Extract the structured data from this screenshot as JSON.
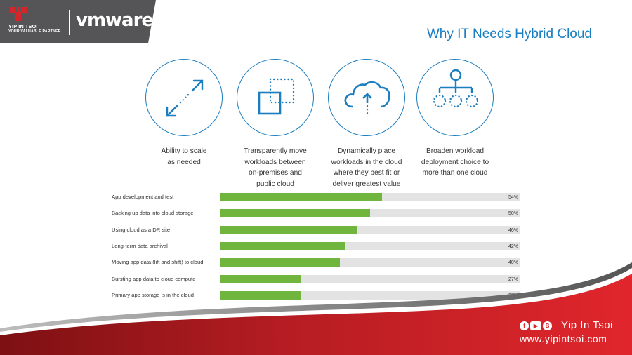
{
  "header": {
    "partner_name": "YIP IN TSOI",
    "partner_tagline": "YOUR VALUABLE PARTNER",
    "vendor_logo": "vmware"
  },
  "title": "Why IT Needs Hybrid Cloud",
  "features": [
    {
      "icon": "scale-arrows-icon",
      "caption": "Ability to scale\nas needed"
    },
    {
      "icon": "move-workload-icon",
      "caption": "Transparently move\nworkloads between\non-premises and\npublic cloud"
    },
    {
      "icon": "cloud-upload-icon",
      "caption": "Dynamically place\nworkloads in the cloud\nwhere they best fit or\ndeliver greatest value"
    },
    {
      "icon": "hierarchy-icon",
      "caption": "Broaden workload\ndeployment choice to\nmore than one cloud"
    }
  ],
  "chart_data": {
    "type": "bar",
    "orientation": "horizontal",
    "categories": [
      "App development and test",
      "Backing up data into cloud storage",
      "Using cloud as a DR site",
      "Long-term data archival",
      "Moving app data (lift and shift) to cloud",
      "Bursting app data to cloud compute",
      "Primary app storage is in the cloud"
    ],
    "values": [
      54,
      50,
      46,
      42,
      40,
      27,
      27
    ],
    "value_labels": [
      "54%",
      "50%",
      "46%",
      "42%",
      "40%",
      "27%",
      "27%"
    ],
    "xlim": [
      0,
      100
    ],
    "unit": "%",
    "grid": false,
    "colors": {
      "bar": "#70b53e",
      "track": "#e3e3e3"
    }
  },
  "footer": {
    "social_icons": [
      "facebook-icon",
      "youtube-icon",
      "blockdit-icon"
    ],
    "brand_name": "Yip In Tsoi",
    "brand_url": "www.yipintsoi.com"
  },
  "colors": {
    "accent_blue": "#1a7ec1",
    "brand_red": "#d5252a",
    "header_gray": "#555557"
  }
}
